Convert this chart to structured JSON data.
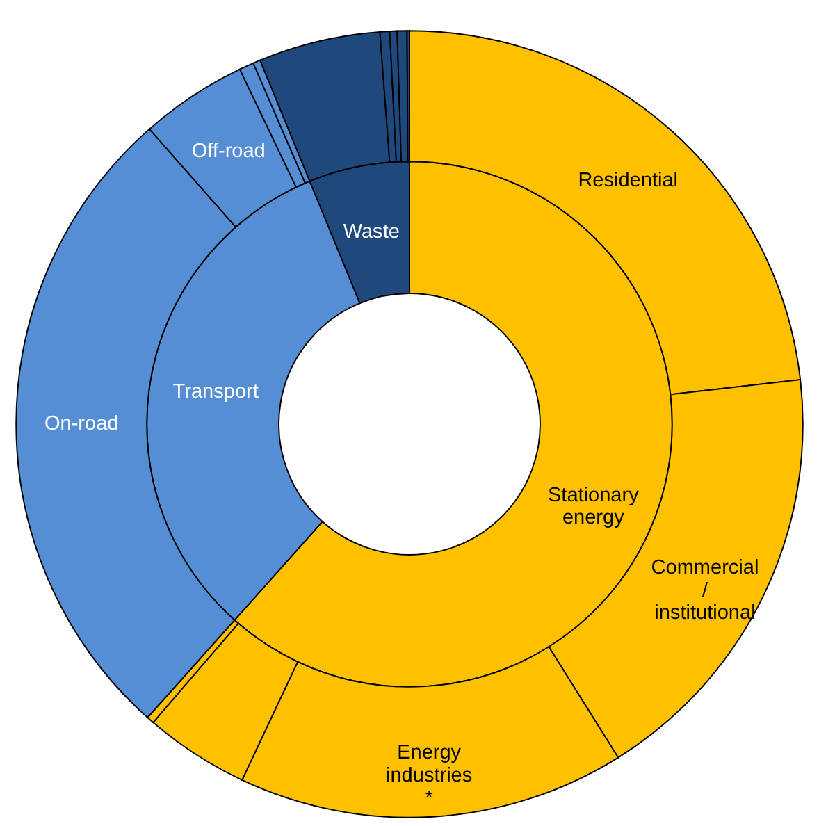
{
  "chart_data": {
    "type": "donut",
    "categories": [
      "Residential",
      "Commercial / institutional",
      "Energy industries *",
      null,
      null,
      "On-road",
      "Off-road",
      null,
      null,
      null,
      null,
      null,
      null,
      null
    ],
    "annotations": [
      "Stationary energy",
      "Transport",
      "Waste"
    ],
    "series": [
      {
        "values": [
          23.2,
          17.9,
          15.9,
          4.3,
          0.3,
          26.9,
          4.4,
          0.6,
          0.3,
          5.0,
          0.4,
          0.3,
          0.4,
          0.1
        ],
        "colors": [
          "#ffc000",
          "#ffc000",
          "#ffc000",
          "#ffc000",
          "#ffc000",
          "#558ed5",
          "#558ed5",
          "#558ed5",
          "#558ed5",
          "#1f497d",
          "#1f497d",
          "#1f497d",
          "#1f497d",
          "#1f497d"
        ]
      },
      {
        "values": [
          61.6,
          null,
          null,
          null,
          null,
          32.2,
          null,
          null,
          null,
          6.2,
          null,
          null,
          null,
          null
        ],
        "colors": [
          "#ffc000",
          "#ffc000",
          "#ffc000",
          "#ffc000",
          "#ffc000",
          "#558ed5",
          "#558ed5",
          "#558ed5",
          "#558ed5",
          "#1f497d",
          "#1f497d",
          "#1f497d",
          "#1f497d",
          "#1f497d"
        ]
      }
    ]
  }
}
